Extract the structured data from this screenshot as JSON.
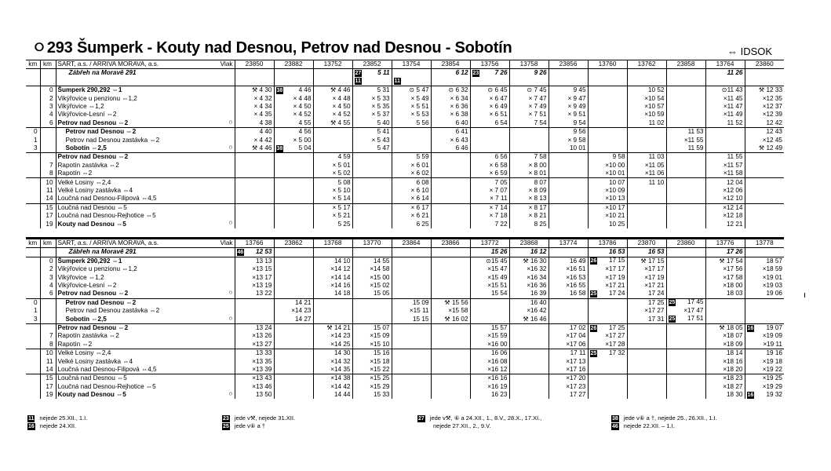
{
  "header": {
    "icon": "train-route-icon",
    "title": "293  Šumperk - Kouty nad Desnou, Petrov nad Desnou - Sobotín",
    "idsok": "⇔ IDSOK"
  },
  "labels": {
    "km": "km",
    "carrier": "SART, a.s. / ARRIVA MORAVA, a.s.",
    "train": "Vlak"
  },
  "top": {
    "trains": [
      "23850",
      "23882",
      "13752",
      "23852",
      "13754",
      "23854",
      "13756",
      "13758",
      "23856",
      "13760",
      "13762",
      "23858",
      "13764",
      "23860"
    ],
    "note_row": {
      "label": "Zábřeh na Moravě 291",
      "cells": [
        "",
        "",
        "",
        "[27] 5 11",
        "",
        "6 12",
        "[23] 7 26",
        "9 26",
        "",
        "",
        "",
        "",
        "11 26",
        ""
      ]
    },
    "badge_row": [
      "",
      "",
      "",
      "[11]",
      "[11]",
      "",
      "",
      "",
      "",
      "",
      "",
      "",
      "",
      ""
    ],
    "groups": [
      [
        {
          "km1": "",
          "km2": "0",
          "name": "Šumperk 290,292 ⇔1",
          "b": true,
          "o": "",
          "cells": [
            "⚒ 4 30",
            "[38] 4 46",
            "⚒ 4 46",
            "5 31",
            "⊙ 5 47",
            "⊙ 6 32",
            "⊙ 6 45",
            "⊙ 7 45",
            "9 45",
            "",
            "10 52",
            "",
            "⊙11 43",
            "⚒ 12 33"
          ]
        },
        {
          "km1": "",
          "km2": "2",
          "name": "Vikýřovice u penzionu ⇔1,2",
          "b": false,
          "o": "",
          "cells": [
            "× 4 32",
            "× 4 48",
            "× 4 48",
            "× 5 33",
            "× 5 49",
            "× 6 34",
            "× 6 47",
            "× 7 47",
            "× 9 47",
            "",
            "×10 54",
            "",
            "×11 45",
            "×12 35"
          ]
        },
        {
          "km1": "",
          "km2": "3",
          "name": "Vikýřovice ⇔1,2",
          "b": false,
          "o": "",
          "cells": [
            "× 4 34",
            "× 4 50",
            "× 4 50",
            "× 5 35",
            "× 5 51",
            "× 6 36",
            "× 6 49",
            "× 7 49",
            "× 9 49",
            "",
            "×10 57",
            "",
            "×11 47",
            "×12 37"
          ]
        },
        {
          "km1": "",
          "km2": "4",
          "name": "Vikýřovice-Lesní ⇔2",
          "b": false,
          "o": "",
          "cells": [
            "× 4 35",
            "× 4 52",
            "× 4 52",
            "× 5 37",
            "× 5 53",
            "× 6 38",
            "× 6 51",
            "× 7 51",
            "× 9 51",
            "",
            "×10 59",
            "",
            "×11 49",
            "×12 39"
          ]
        },
        {
          "km1": "",
          "km2": "6",
          "name": "Petrov nad Desnou ⇔2",
          "b": true,
          "o": "○",
          "cells": [
            "4 38",
            "4 55",
            "⚒ 4 55",
            "5 40",
            "5 56",
            "6 40",
            "6 54",
            "7 54",
            "9 54",
            "",
            "11 02",
            "",
            "11 52",
            "12 42"
          ]
        }
      ],
      [
        {
          "km1": "0",
          "km2": "",
          "name": "Petrov nad Desnou ⇔2",
          "b": true,
          "o": "",
          "cells": [
            "4 40",
            "4 56",
            "",
            "5 41",
            "",
            "6 41",
            "",
            "",
            "9 56",
            "",
            "",
            "11 53",
            "",
            "12 43"
          ]
        },
        {
          "km1": "1",
          "km2": "",
          "name": "Petrov nad Desnou zastávka ⇔2",
          "b": false,
          "o": "",
          "cells": [
            "× 4 42",
            "× 5 00",
            "",
            "× 5 43",
            "",
            "× 6 43",
            "",
            "",
            "× 9 58",
            "",
            "",
            "×11 55",
            "",
            "×12 45"
          ]
        },
        {
          "km1": "3",
          "km2": "",
          "name": "Sobotín ⇔2,5",
          "b": true,
          "o": "○",
          "cells": [
            "⚒ 4 46",
            "[38] 5 04",
            "",
            "5 47",
            "",
            "6 46",
            "",
            "",
            "10 01",
            "",
            "",
            "11 59",
            "",
            "⚒ 12 49"
          ]
        }
      ],
      [
        {
          "km1": "",
          "km2": "",
          "name": "Petrov nad Desnou ⇔2",
          "b": true,
          "o": "",
          "cells": [
            "",
            "",
            "4 59",
            "",
            "5 59",
            "",
            "6 56",
            "7 58",
            "",
            "9 58",
            "11 03",
            "",
            "11 55",
            ""
          ]
        },
        {
          "km1": "",
          "km2": "7",
          "name": "Rapotín zastávka ⇔2",
          "b": false,
          "o": "",
          "cells": [
            "",
            "",
            "× 5 01",
            "",
            "× 6 01",
            "",
            "× 6 58",
            "× 8 00",
            "",
            "×10 00",
            "×11 05",
            "",
            "×11 57",
            ""
          ]
        },
        {
          "km1": "",
          "km2": "8",
          "name": "Rapotín ⇔2",
          "b": false,
          "o": "",
          "cells": [
            "",
            "",
            "× 5 02",
            "",
            "× 6 02",
            "",
            "× 6 59",
            "× 8 01",
            "",
            "×10 01",
            "×11 06",
            "",
            "×11 58",
            ""
          ]
        }
      ],
      [
        {
          "km1": "",
          "km2": "10",
          "name": "Velké Losiny ⇔2,4",
          "b": false,
          "o": "",
          "cells": [
            "",
            "",
            "5 08",
            "",
            "6 08",
            "",
            "7 05",
            "8 07",
            "",
            "10 07",
            "11 10",
            "",
            "12 04",
            ""
          ]
        },
        {
          "km1": "",
          "km2": "11",
          "name": "Velké Losiny zastávka ⇔4",
          "b": false,
          "o": "",
          "cells": [
            "",
            "",
            "× 5 10",
            "",
            "× 6 10",
            "",
            "× 7 07",
            "× 8 09",
            "",
            "×10 09",
            "",
            "",
            "×12 06",
            ""
          ]
        },
        {
          "km1": "",
          "km2": "14",
          "name": "Loučná nad Desnou-Filipová ⇔4,5",
          "b": false,
          "o": "",
          "cells": [
            "",
            "",
            "× 5 14",
            "",
            "× 6 14",
            "",
            "× 7 11",
            "× 8 13",
            "",
            "×10 13",
            "",
            "",
            "×12 10",
            ""
          ]
        }
      ],
      [
        {
          "km1": "",
          "km2": "15",
          "name": "Loučná nad Desnou ⇔5",
          "b": false,
          "o": "",
          "cells": [
            "",
            "",
            "× 5 17",
            "",
            "× 6 17",
            "",
            "× 7 14",
            "× 8 17",
            "",
            "×10 17",
            "",
            "",
            "×12 14",
            ""
          ]
        },
        {
          "km1": "",
          "km2": "17",
          "name": "Loučná nad Desnou-Rejhotice ⇔5",
          "b": false,
          "o": "",
          "cells": [
            "",
            "",
            "× 5 21",
            "",
            "× 6 21",
            "",
            "× 7 18",
            "× 8 21",
            "",
            "×10 21",
            "",
            "",
            "×12 18",
            ""
          ]
        },
        {
          "km1": "",
          "km2": "19",
          "name": "Kouty nad Desnou ⇔5",
          "b": true,
          "o": "○",
          "cells": [
            "",
            "",
            "5 25",
            "",
            "6 25",
            "",
            "7 22",
            "8 25",
            "",
            "10 25",
            "",
            "",
            "12 21",
            ""
          ]
        }
      ]
    ]
  },
  "bottom": {
    "trains": [
      "13766",
      "23862",
      "13768",
      "13770",
      "23864",
      "23866",
      "13772",
      "23868",
      "13774",
      "13786",
      "23870",
      "23860",
      "13776",
      "13778"
    ],
    "note_row": {
      "label": "Zábřeh na Moravě 291",
      "cells": [
        "[46] 12 53",
        "",
        "",
        "",
        "",
        "",
        "15 26",
        "16 12",
        "",
        "16 53",
        "16 53",
        "",
        "17 26",
        ""
      ]
    },
    "groups": [
      [
        {
          "km1": "",
          "km2": "0",
          "name": "Šumperk 290,292 ⇔1",
          "b": true,
          "o": "",
          "cells": [
            "13 13",
            "",
            "14 10",
            "14 55",
            "",
            "",
            "⊙15 45",
            "⚒ 16 30",
            "16 49",
            "[26] 17 15",
            "⚒ 17 15",
            "",
            "⚒ 17 54",
            "18 57"
          ]
        },
        {
          "km1": "",
          "km2": "2",
          "name": "Vikýřovice u penzionu ⇔1,2",
          "b": false,
          "o": "",
          "cells": [
            "×13 15",
            "",
            "×14 12",
            "×14 58",
            "",
            "",
            "×15 47",
            "×16 32",
            "×16 51",
            "×17 17",
            "×17 17",
            "",
            "×17 56",
            "×18 59"
          ]
        },
        {
          "km1": "",
          "km2": "3",
          "name": "Vikýřovice ⇔1,2",
          "b": false,
          "o": "",
          "cells": [
            "×13 17",
            "",
            "×14 14",
            "×15 00",
            "",
            "",
            "×15 49",
            "×16 34",
            "×16 53",
            "×17 19",
            "×17 19",
            "",
            "×17 58",
            "×19 01"
          ]
        },
        {
          "km1": "",
          "km2": "4",
          "name": "Vikýřovice-Lesní ⇔2",
          "b": false,
          "o": "",
          "cells": [
            "×13 19",
            "",
            "×14 16",
            "×15 02",
            "",
            "",
            "×15 51",
            "×16 36",
            "×16 55",
            "×17 21",
            "×17 21",
            "",
            "×18 00",
            "×19 03"
          ]
        },
        {
          "km1": "",
          "km2": "6",
          "name": "Petrov nad Desnou ⇔2",
          "b": true,
          "o": "○",
          "cells": [
            "13 22",
            "",
            "14 18",
            "15 05",
            "",
            "",
            "15 54",
            "16 39",
            "16 58",
            "[25] 17 24",
            "17 24",
            "",
            "18 03",
            "19 06"
          ]
        }
      ],
      [
        {
          "km1": "0",
          "km2": "",
          "name": "Petrov nad Desnou ⇔2",
          "b": true,
          "o": "",
          "cells": [
            "",
            "14 21",
            "",
            "",
            "15 09",
            "⚒ 15 56",
            "",
            "16 40",
            "",
            "",
            "17 25",
            "[25] 17 45",
            "",
            ""
          ]
        },
        {
          "km1": "1",
          "km2": "",
          "name": "Petrov nad Desnou zastávka ⇔2",
          "b": false,
          "o": "",
          "cells": [
            "",
            "×14 23",
            "",
            "",
            "×15 11",
            "×15 58",
            "",
            "×16 42",
            "",
            "",
            "×17 27",
            "×17 47",
            "",
            ""
          ]
        },
        {
          "km1": "3",
          "km2": "",
          "name": "Sobotín ⇔2,5",
          "b": true,
          "o": "○",
          "cells": [
            "",
            "14 27",
            "",
            "",
            "15 15",
            "⚒ 16 02",
            "",
            "⚒ 16 46",
            "",
            "",
            "17 31",
            "[25] 17 51",
            "",
            ""
          ]
        }
      ],
      [
        {
          "km1": "",
          "km2": "",
          "name": "Petrov nad Desnou ⇔2",
          "b": true,
          "o": "",
          "cells": [
            "13 24",
            "",
            "⚒ 14 21",
            "15 07",
            "",
            "",
            "15 57",
            "",
            "17 02",
            "[26] 17 25",
            "",
            "",
            "⚒ 18 05",
            "[16] 19 07"
          ]
        },
        {
          "km1": "",
          "km2": "7",
          "name": "Rapotín zastávka ⇔2",
          "b": false,
          "o": "",
          "cells": [
            "×13 26",
            "",
            "×14 23",
            "×15 09",
            "",
            "",
            "×15 59",
            "",
            "×17 04",
            "×17 27",
            "",
            "",
            "×18 07",
            "×19 09"
          ]
        },
        {
          "km1": "",
          "km2": "8",
          "name": "Rapotín ⇔2",
          "b": false,
          "o": "",
          "cells": [
            "×13 27",
            "",
            "×14 25",
            "×15 10",
            "",
            "",
            "×16 00",
            "",
            "×17 06",
            "×17 28",
            "",
            "",
            "×18 09",
            "×19 11"
          ]
        }
      ],
      [
        {
          "km1": "",
          "km2": "10",
          "name": "Velké Losiny ⇔2,4",
          "b": false,
          "o": "",
          "cells": [
            "13 33",
            "",
            "14 30",
            "15 16",
            "",
            "",
            "16 06",
            "",
            "17 11",
            "[25] 17 32",
            "",
            "",
            "18 14",
            "19 16"
          ]
        },
        {
          "km1": "",
          "km2": "11",
          "name": "Velké Losiny zastávka ⇔4",
          "b": false,
          "o": "",
          "cells": [
            "×13 35",
            "",
            "×14 32",
            "×15 18",
            "",
            "",
            "×16 08",
            "",
            "×17 13",
            "",
            "",
            "",
            "×18 16",
            "×19 18"
          ]
        },
        {
          "km1": "",
          "km2": "14",
          "name": "Loučná nad Desnou-Filipová ⇔4,5",
          "b": false,
          "o": "",
          "cells": [
            "×13 39",
            "",
            "×14 35",
            "×15 22",
            "",
            "",
            "×16 12",
            "",
            "×17 16",
            "",
            "",
            "",
            "×18 20",
            "×19 22"
          ]
        }
      ],
      [
        {
          "km1": "",
          "km2": "15",
          "name": "Loučná nad Desnou ⇔5",
          "b": false,
          "o": "",
          "cells": [
            "×13 43",
            "",
            "×14 38",
            "×15 25",
            "",
            "",
            "×16 16",
            "",
            "×17 20",
            "",
            "",
            "",
            "×18 23",
            "×19 25"
          ]
        },
        {
          "km1": "",
          "km2": "17",
          "name": "Loučná nad Desnou-Rejhotice ⇔5",
          "b": false,
          "o": "",
          "cells": [
            "×13 46",
            "",
            "×14 42",
            "×15 29",
            "",
            "",
            "×16 19",
            "",
            "×17 23",
            "",
            "",
            "",
            "×18 27",
            "×19 29"
          ]
        },
        {
          "km1": "",
          "km2": "19",
          "name": "Kouty nad Desnou ⇔5",
          "b": true,
          "o": "○",
          "cells": [
            "13 50",
            "",
            "14 44",
            "15 33",
            "",
            "",
            "16 23",
            "",
            "17 27",
            "",
            "",
            "",
            "18 30",
            "[16] 19 32"
          ]
        }
      ]
    ]
  },
  "footnotes": [
    {
      "badge": "11",
      "text": "nejede 25.XII., 1.I.",
      "col": 0,
      "row": 0
    },
    {
      "badge": "16",
      "text": "nejede 24.XII.",
      "col": 0,
      "row": 1
    },
    {
      "badge": "23",
      "text": "jede v⚒, nejede 31.XII.",
      "col": 1,
      "row": 0
    },
    {
      "badge": "25",
      "text": "jede v⑥ a †",
      "col": 1,
      "row": 1
    },
    {
      "badge": "27",
      "text": "jede v⚒, ⑥ a 24.XII., 1., 8.V., 28.X., 17.XI.,",
      "col": 2,
      "row": 0
    },
    {
      "badge": "",
      "text": "nejede 27.XII., 2., 9.V.",
      "col": 2,
      "row": 1
    },
    {
      "badge": "38",
      "text": "jede v⑥ a †, nejede 25., 26.XII., 1.I.",
      "col": 3,
      "row": 0
    },
    {
      "badge": "46",
      "text": "nejede 22.XII. – 1.I.",
      "col": 3,
      "row": 1
    }
  ]
}
